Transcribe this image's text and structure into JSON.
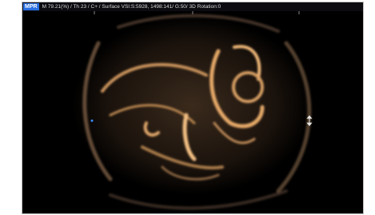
{
  "header": {
    "mode": "MPR",
    "info": "M 79.21(%) / Th 23 / C+ / Surface VSI:S:5928, 1498:141/ G:50/ 3D Rotation:0"
  }
}
